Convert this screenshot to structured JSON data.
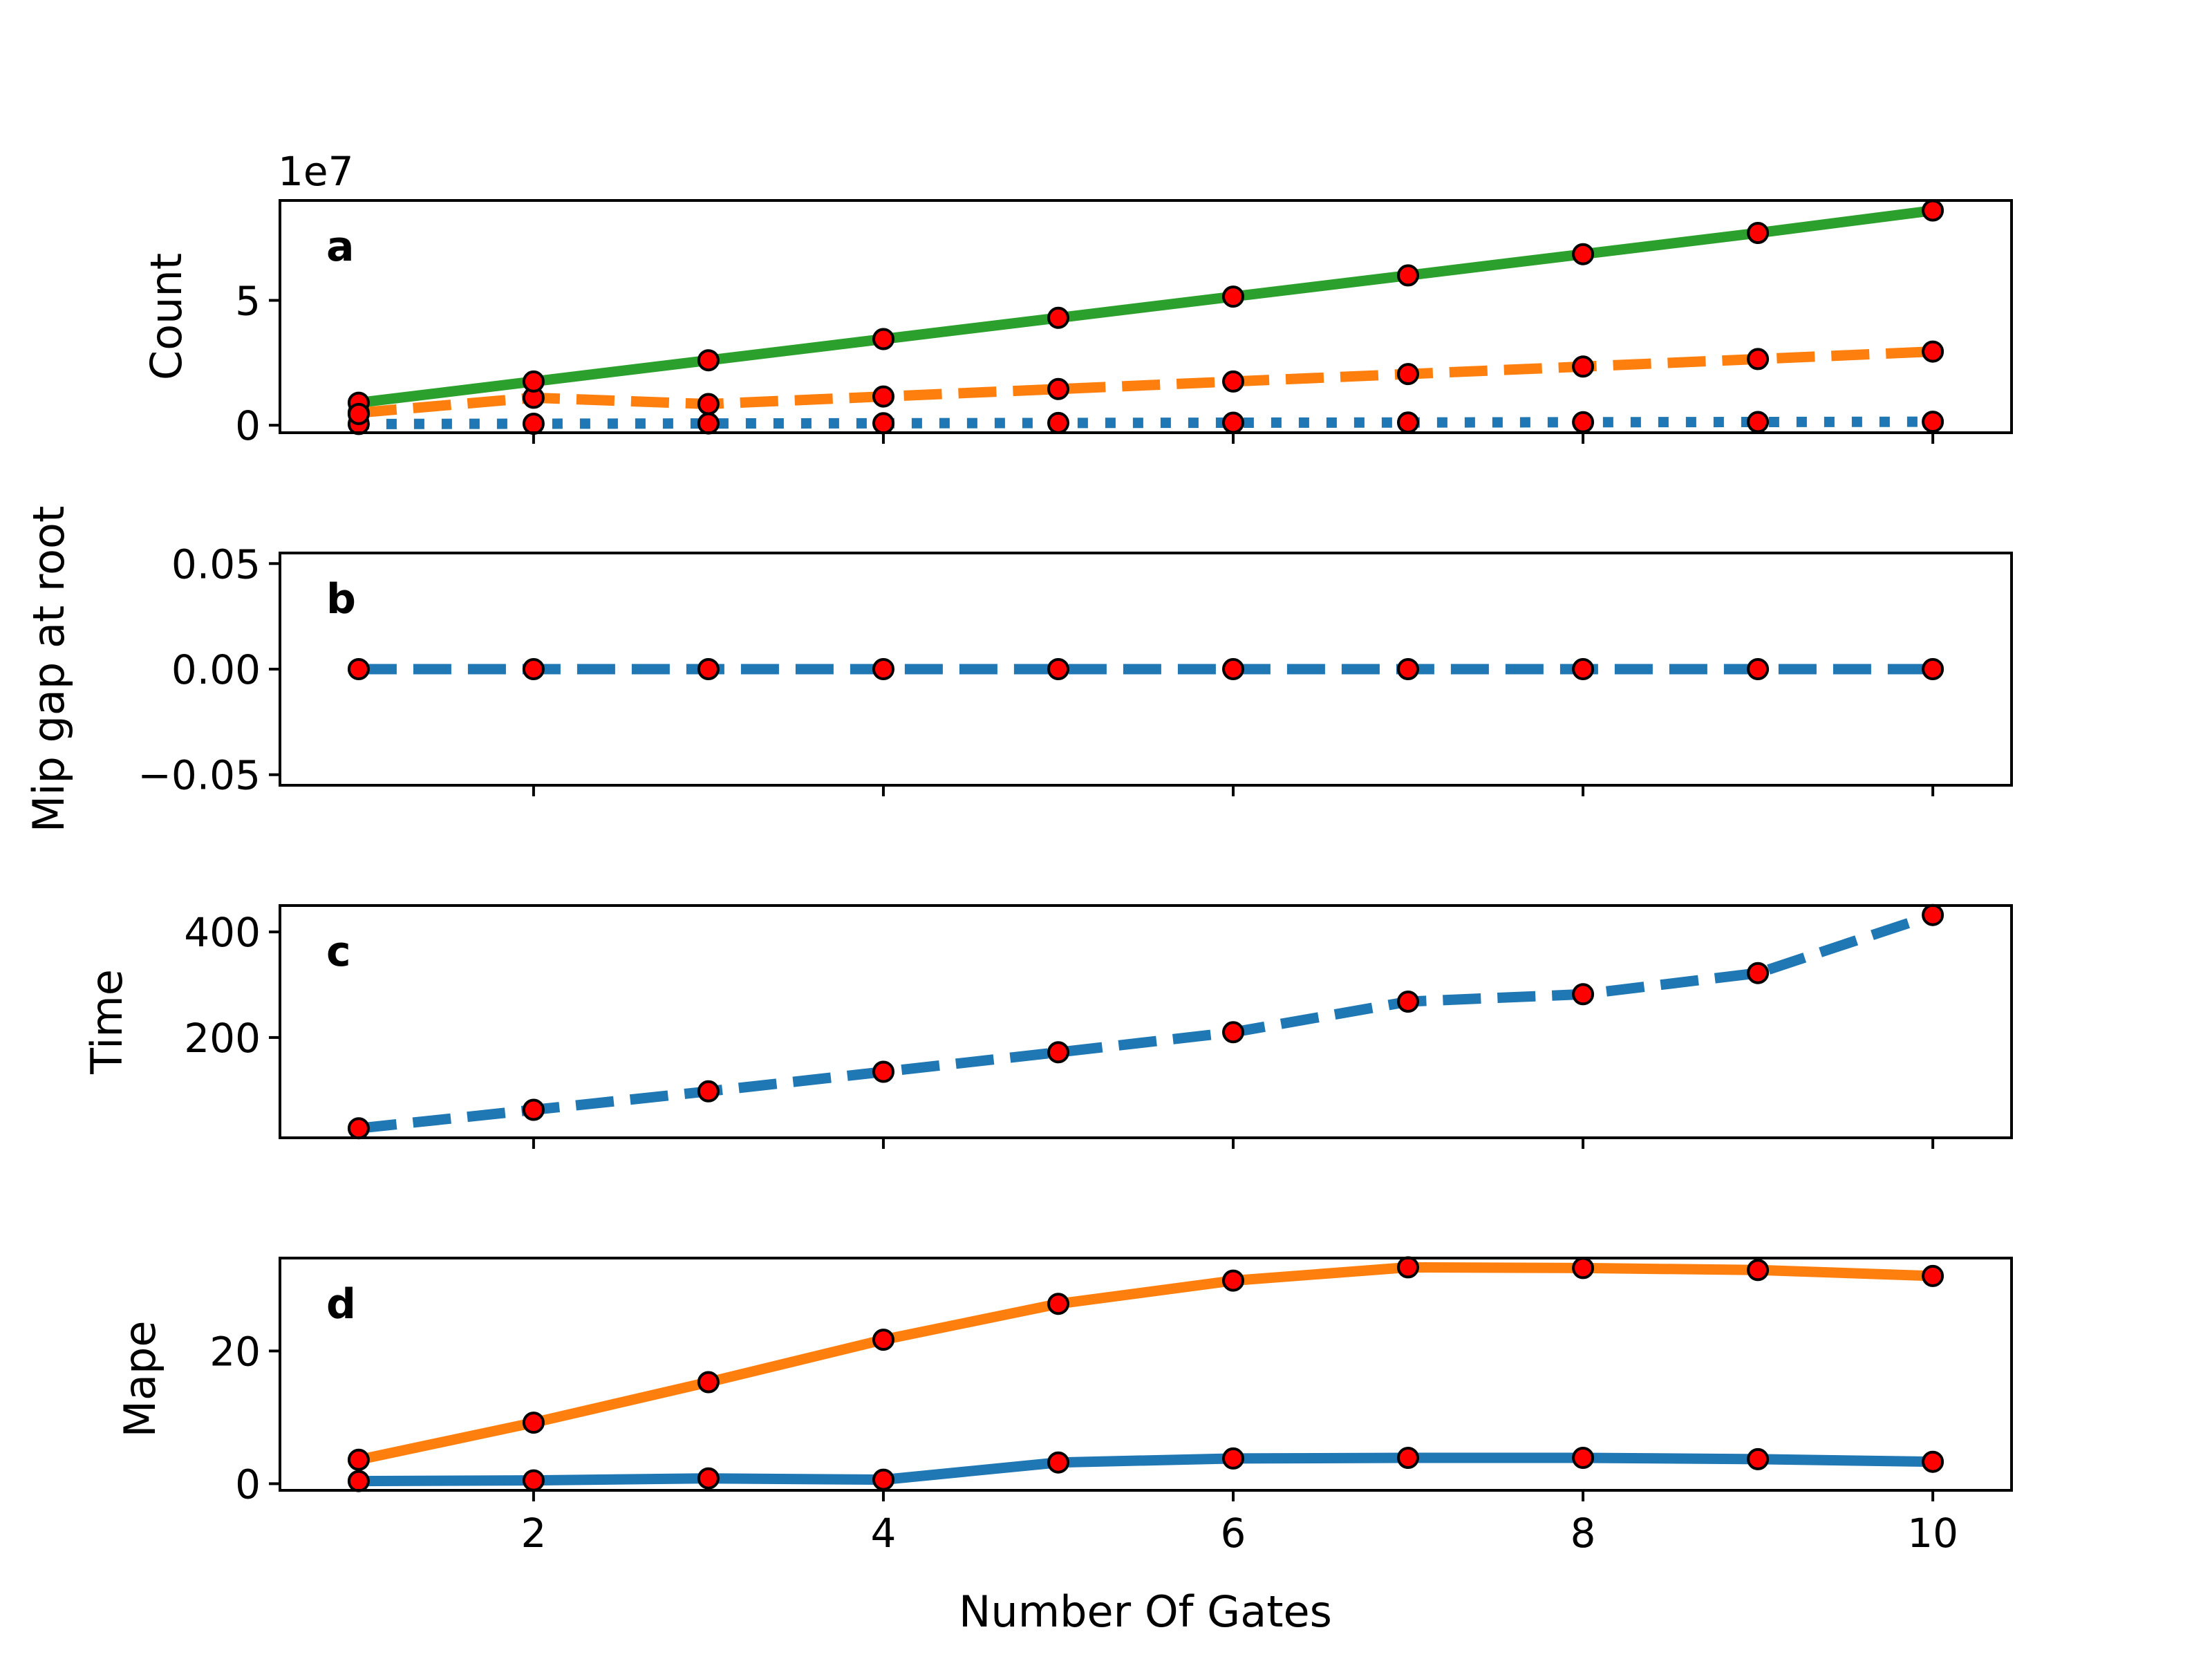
{
  "chart_data": [
    {
      "type": "line",
      "panel_label": "a",
      "ylabel": "Count",
      "offset_text": "1e7",
      "x": [
        1,
        2,
        3,
        4,
        5,
        6,
        7,
        8,
        9,
        10
      ],
      "ylim": [
        -0.3,
        9.0
      ],
      "yticks": [
        0,
        5
      ],
      "series": [
        {
          "values": [
            0.05,
            0.06,
            0.07,
            0.08,
            0.09,
            0.1,
            0.11,
            0.12,
            0.13,
            0.14
          ],
          "color": "#1f77b4",
          "style": "dotted"
        },
        {
          "values": [
            0.5,
            1.1,
            0.85,
            1.15,
            1.45,
            1.75,
            2.05,
            2.35,
            2.65,
            2.95
          ],
          "color": "#ff7f0e",
          "style": "dashed"
        },
        {
          "values": [
            0.9,
            1.75,
            2.6,
            3.45,
            4.3,
            5.15,
            6.0,
            6.85,
            7.7,
            8.6
          ],
          "color": "#2ca02c",
          "style": "solid"
        }
      ],
      "extra_points": [
        {
          "x": 1,
          "y": 0.45
        }
      ]
    },
    {
      "type": "line",
      "panel_label": "b",
      "ylabel": "Mip gap at root",
      "x": [
        1,
        2,
        3,
        4,
        5,
        6,
        7,
        8,
        9,
        10
      ],
      "ylim": [
        -0.055,
        0.055
      ],
      "yticks": [
        "0.05",
        "0.00",
        "−0.05"
      ],
      "series": [
        {
          "values": [
            0,
            0,
            0,
            0,
            0,
            0,
            0,
            0,
            0,
            0
          ],
          "color": "#1f77b4",
          "style": "dashed"
        }
      ]
    },
    {
      "type": "line",
      "panel_label": "c",
      "ylabel": "Time",
      "x": [
        1,
        2,
        3,
        4,
        5,
        6,
        7,
        8,
        9,
        10
      ],
      "ylim": [
        10,
        450
      ],
      "yticks": [
        200,
        400
      ],
      "series": [
        {
          "values": [
            28,
            63,
            98,
            135,
            172,
            210,
            268,
            282,
            322,
            432
          ],
          "color": "#1f77b4",
          "style": "dashed"
        }
      ]
    },
    {
      "type": "line",
      "panel_label": "d",
      "ylabel": "Mape",
      "xlabel": "Number Of Gates",
      "x": [
        1,
        2,
        3,
        4,
        5,
        6,
        7,
        8,
        9,
        10
      ],
      "xticks": [
        2,
        4,
        6,
        8,
        10
      ],
      "ylim": [
        -1,
        34
      ],
      "yticks": [
        0,
        20
      ],
      "series": [
        {
          "values": [
            0.4,
            0.5,
            0.8,
            0.6,
            3.2,
            3.8,
            3.9,
            3.9,
            3.7,
            3.3
          ],
          "color": "#1f77b4",
          "style": "solid"
        },
        {
          "values": [
            3.6,
            9.2,
            15.3,
            21.7,
            27.1,
            30.6,
            32.6,
            32.5,
            32.2,
            31.3
          ],
          "color": "#ff7f0e",
          "style": "solid"
        }
      ]
    }
  ]
}
